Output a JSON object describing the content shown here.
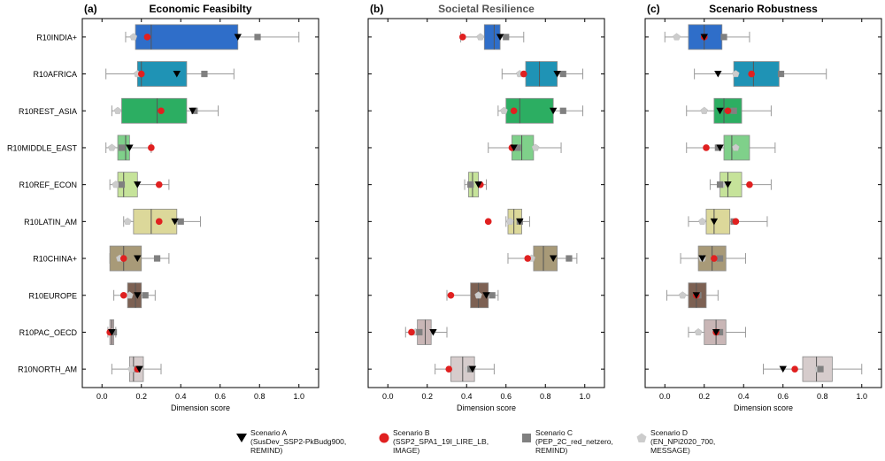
{
  "regions": [
    "R10INDIA+",
    "R10AFRICA",
    "R10REST_ASIA",
    "R10MIDDLE_EAST",
    "R10REF_ECON",
    "R10LATIN_AM",
    "R10CHINA+",
    "R10EUROPE",
    "R10PAC_OECD",
    "R10NORTH_AM"
  ],
  "region_colors": [
    "#2f6ec9",
    "#1f93b5",
    "#2cae62",
    "#7fd08a",
    "#c6e39a",
    "#dcd89a",
    "#a89a78",
    "#7d6153",
    "#c9b6b6",
    "#d6cccc"
  ],
  "marker_colors": {
    "A": "#000000",
    "B": "#e02020",
    "C": "#808080",
    "D": "#cccccc"
  },
  "xlabel": "Dimension score",
  "xticks": [
    "0.0",
    "0.2",
    "0.4",
    "0.6",
    "0.8",
    "1.0"
  ],
  "legend": [
    {
      "marker": "triangle",
      "name": "Scenario A",
      "desc1": "(SusDev_SSP2-PkBudg900,",
      "desc2": "REMIND)"
    },
    {
      "marker": "circle",
      "name": "Scenario B",
      "desc1": "(SSP2_SPA1_19I_LIRE_LB,",
      "desc2": "IMAGE)"
    },
    {
      "marker": "square",
      "name": "Scenario C",
      "desc1": "(PEP_2C_red_netzero,",
      "desc2": "REMIND)"
    },
    {
      "marker": "pentagon",
      "name": "Scenario D",
      "desc1": "(EN_NPi2020_700,",
      "desc2": "MESSAGE)"
    }
  ],
  "chart_data": [
    {
      "type": "box",
      "panel": "(a)",
      "title": "Economic Feasibilty",
      "title_color": "#000000",
      "xlim": [
        -0.1,
        1.1
      ],
      "boxes": [
        {
          "whislo": 0.12,
          "q1": 0.17,
          "med": 0.25,
          "q3": 0.69,
          "whishi": 1.0,
          "A": 0.69,
          "B": 0.23,
          "C": 0.79,
          "D": 0.16
        },
        {
          "whislo": 0.02,
          "q1": 0.18,
          "med": 0.2,
          "q3": 0.43,
          "whishi": 0.67,
          "A": 0.38,
          "B": 0.2,
          "C": 0.52,
          "D": 0.18
        },
        {
          "whislo": 0.05,
          "q1": 0.1,
          "med": 0.28,
          "q3": 0.43,
          "whishi": 0.59,
          "A": 0.46,
          "B": 0.3,
          "C": 0.47,
          "D": 0.08
        },
        {
          "whislo": 0.02,
          "q1": 0.08,
          "med": 0.12,
          "q3": 0.14,
          "whishi": 0.25,
          "A": 0.14,
          "B": 0.25,
          "C": 0.1,
          "D": 0.05
        },
        {
          "whislo": 0.04,
          "q1": 0.08,
          "med": 0.11,
          "q3": 0.18,
          "whishi": 0.34,
          "A": 0.18,
          "B": 0.29,
          "C": 0.1,
          "D": 0.07
        },
        {
          "whislo": 0.11,
          "q1": 0.16,
          "med": 0.25,
          "q3": 0.38,
          "whishi": 0.5,
          "A": 0.37,
          "B": 0.29,
          "C": 0.4,
          "D": 0.13
        },
        {
          "whislo": 0.04,
          "q1": 0.04,
          "med": 0.11,
          "q3": 0.2,
          "whishi": 0.34,
          "A": 0.18,
          "B": 0.11,
          "C": 0.28,
          "D": 0.09
        },
        {
          "whislo": 0.06,
          "q1": 0.13,
          "med": 0.17,
          "q3": 0.2,
          "whishi": 0.27,
          "A": 0.18,
          "B": 0.11,
          "C": 0.22,
          "D": 0.14
        },
        {
          "whislo": 0.03,
          "q1": 0.04,
          "med": 0.05,
          "q3": 0.06,
          "whishi": 0.07,
          "A": 0.05,
          "B": 0.04,
          "C": 0.06,
          "D": 0.05
        },
        {
          "whislo": 0.05,
          "q1": 0.14,
          "med": 0.16,
          "q3": 0.21,
          "whishi": 0.3,
          "A": 0.19,
          "B": 0.18,
          "C": 0.18,
          "D": 0.15
        }
      ]
    },
    {
      "type": "box",
      "panel": "(b)",
      "title": "Societal Resilience",
      "title_color": "#555555",
      "xlim": [
        -0.1,
        1.1
      ],
      "boxes": [
        {
          "whislo": 0.37,
          "q1": 0.49,
          "med": 0.54,
          "q3": 0.57,
          "whishi": 0.69,
          "A": 0.57,
          "B": 0.38,
          "C": 0.6,
          "D": 0.47
        },
        {
          "whislo": 0.58,
          "q1": 0.7,
          "med": 0.77,
          "q3": 0.86,
          "whishi": 0.99,
          "A": 0.86,
          "B": 0.69,
          "C": 0.89,
          "D": 0.67
        },
        {
          "whislo": 0.56,
          "q1": 0.6,
          "med": 0.67,
          "q3": 0.84,
          "whishi": 0.99,
          "A": 0.84,
          "B": 0.64,
          "C": 0.89,
          "D": 0.59
        },
        {
          "whislo": 0.51,
          "q1": 0.63,
          "med": 0.68,
          "q3": 0.74,
          "whishi": 0.88,
          "A": 0.64,
          "B": 0.63,
          "C": 0.66,
          "D": 0.75
        },
        {
          "whislo": 0.39,
          "q1": 0.41,
          "med": 0.43,
          "q3": 0.46,
          "whishi": 0.5,
          "A": 0.46,
          "B": 0.47,
          "C": 0.42,
          "D": 0.42
        },
        {
          "whislo": 0.6,
          "q1": 0.61,
          "med": 0.64,
          "q3": 0.68,
          "whishi": 0.72,
          "A": 0.67,
          "B": 0.51,
          "C": 0.67,
          "D": 0.62
        },
        {
          "whislo": 0.61,
          "q1": 0.74,
          "med": 0.79,
          "q3": 0.86,
          "whishi": 0.96,
          "A": 0.84,
          "B": 0.71,
          "C": 0.92,
          "D": 0.73
        },
        {
          "whislo": 0.3,
          "q1": 0.42,
          "med": 0.46,
          "q3": 0.51,
          "whishi": 0.56,
          "A": 0.5,
          "B": 0.32,
          "C": 0.53,
          "D": 0.46
        },
        {
          "whislo": 0.09,
          "q1": 0.15,
          "med": 0.19,
          "q3": 0.22,
          "whishi": 0.3,
          "A": 0.23,
          "B": 0.12,
          "C": 0.16,
          "D": 0.14
        },
        {
          "whislo": 0.24,
          "q1": 0.32,
          "med": 0.38,
          "q3": 0.44,
          "whishi": 0.54,
          "A": 0.43,
          "B": 0.31,
          "C": 0.42,
          "D": 0.41
        }
      ]
    },
    {
      "type": "box",
      "panel": "(c)",
      "title": "Scenario Robustness",
      "title_color": "#000000",
      "xlim": [
        -0.1,
        1.1
      ],
      "boxes": [
        {
          "whislo": 0.0,
          "q1": 0.12,
          "med": 0.2,
          "q3": 0.29,
          "whishi": 0.43,
          "A": 0.2,
          "B": 0.2,
          "C": 0.3,
          "D": 0.06
        },
        {
          "whislo": 0.15,
          "q1": 0.35,
          "med": 0.45,
          "q3": 0.58,
          "whishi": 0.82,
          "A": 0.27,
          "B": 0.44,
          "C": 0.59,
          "D": 0.36
        },
        {
          "whislo": 0.11,
          "q1": 0.25,
          "med": 0.3,
          "q3": 0.39,
          "whishi": 0.54,
          "A": 0.28,
          "B": 0.32,
          "C": 0.35,
          "D": 0.2
        },
        {
          "whislo": 0.11,
          "q1": 0.3,
          "med": 0.34,
          "q3": 0.43,
          "whishi": 0.56,
          "A": 0.28,
          "B": 0.21,
          "C": 0.27,
          "D": 0.36
        },
        {
          "whislo": 0.23,
          "q1": 0.28,
          "med": 0.32,
          "q3": 0.39,
          "whishi": 0.54,
          "A": 0.32,
          "B": 0.43,
          "C": 0.28,
          "D": 0.29
        },
        {
          "whislo": 0.12,
          "q1": 0.21,
          "med": 0.25,
          "q3": 0.33,
          "whishi": 0.52,
          "A": 0.25,
          "B": 0.36,
          "C": 0.35,
          "D": 0.19
        },
        {
          "whislo": 0.08,
          "q1": 0.17,
          "med": 0.24,
          "q3": 0.31,
          "whishi": 0.41,
          "A": 0.19,
          "B": 0.25,
          "C": 0.28,
          "D": 0.19
        },
        {
          "whislo": 0.01,
          "q1": 0.12,
          "med": 0.16,
          "q3": 0.21,
          "whishi": 0.27,
          "A": 0.16,
          "B": 0.16,
          "C": 0.17,
          "D": 0.09
        },
        {
          "whislo": 0.12,
          "q1": 0.2,
          "med": 0.26,
          "q3": 0.31,
          "whishi": 0.41,
          "A": 0.26,
          "B": 0.26,
          "C": 0.28,
          "D": 0.17
        },
        {
          "whislo": 0.5,
          "q1": 0.7,
          "med": 0.77,
          "q3": 0.85,
          "whishi": 1.0,
          "A": 0.6,
          "B": 0.66,
          "C": 0.79,
          "D": 0.78
        }
      ]
    }
  ]
}
